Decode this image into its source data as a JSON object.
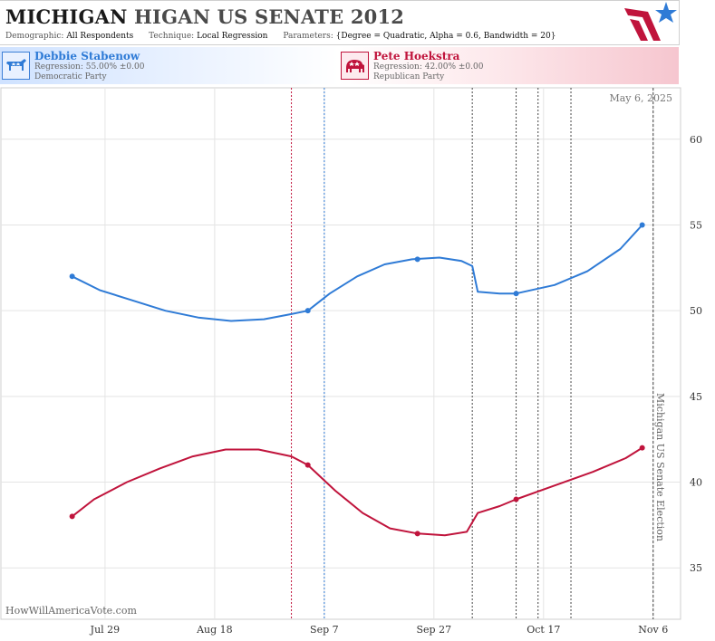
{
  "header": {
    "title_state": "MICHIGAN",
    "title_race": "HIGAN US SENATE 2012",
    "demographic_label": "Demographic:",
    "demographic_value": "All Respondents",
    "technique_label": "Technique:",
    "technique_value": "Local Regression",
    "parameters_label": "Parameters:",
    "parameters_value": "{Degree = Quadratic, Alpha = 0.6, Bandwidth = 20}"
  },
  "candidates": [
    {
      "name": "Debbie Stabenow",
      "regression": "Regression: 55.00% ±0.00",
      "party": "Democratic Party",
      "icon": "donkey-icon"
    },
    {
      "name": "Pete Hoekstra",
      "regression": "Regression: 42.00% ±0.00",
      "party": "Republican Party",
      "icon": "elephant-icon"
    }
  ],
  "colors": {
    "dem": "#2f7bd6",
    "rep": "#c0143c",
    "grid": "#e4e4e4",
    "event": "#444444"
  },
  "chart_data": {
    "type": "line",
    "date_label": "May 6, 2025",
    "watermark": "HowWillAmericaVote.com",
    "event_label": "Michigan US Senate Election",
    "x_ticks": [
      {
        "label": "Jul 29",
        "date": "2012-07-29"
      },
      {
        "label": "Aug 18",
        "date": "2012-08-18"
      },
      {
        "label": "Sep 7",
        "date": "2012-09-07"
      },
      {
        "label": "Sep 27",
        "date": "2012-09-27"
      },
      {
        "label": "Oct 17",
        "date": "2012-10-17"
      },
      {
        "label": "Nov 6",
        "date": "2012-11-06"
      }
    ],
    "xlim": [
      "2012-07-10",
      "2012-11-11"
    ],
    "ylim": [
      32,
      63
    ],
    "y_ticks": [
      35,
      40,
      45,
      50,
      55,
      60
    ],
    "series": [
      {
        "name": "Debbie Stabenow",
        "color": "#2f7bd6",
        "line": [
          [
            "2012-07-23",
            52.0
          ],
          [
            "2012-07-28",
            51.2
          ],
          [
            "2012-08-03",
            50.6
          ],
          [
            "2012-08-09",
            50.0
          ],
          [
            "2012-08-15",
            49.6
          ],
          [
            "2012-08-21",
            49.4
          ],
          [
            "2012-08-27",
            49.5
          ],
          [
            "2012-09-01",
            49.8
          ],
          [
            "2012-09-04",
            50.0
          ],
          [
            "2012-09-08",
            51.0
          ],
          [
            "2012-09-13",
            52.0
          ],
          [
            "2012-09-18",
            52.7
          ],
          [
            "2012-09-23",
            53.0
          ],
          [
            "2012-09-28",
            53.1
          ],
          [
            "2012-10-02",
            52.9
          ],
          [
            "2012-10-04",
            52.6
          ],
          [
            "2012-10-05",
            51.1
          ],
          [
            "2012-10-09",
            51.0
          ],
          [
            "2012-10-12",
            51.0
          ],
          [
            "2012-10-19",
            51.5
          ],
          [
            "2012-10-25",
            52.3
          ],
          [
            "2012-10-31",
            53.6
          ],
          [
            "2012-11-04",
            55.0
          ]
        ],
        "points": [
          [
            "2012-07-23",
            52
          ],
          [
            "2012-09-04",
            50
          ],
          [
            "2012-09-24",
            53
          ],
          [
            "2012-10-12",
            51
          ],
          [
            "2012-11-04",
            55
          ]
        ]
      },
      {
        "name": "Pete Hoekstra",
        "color": "#c0143c",
        "line": [
          [
            "2012-07-23",
            38.0
          ],
          [
            "2012-07-27",
            39.0
          ],
          [
            "2012-08-02",
            40.0
          ],
          [
            "2012-08-08",
            40.8
          ],
          [
            "2012-08-14",
            41.5
          ],
          [
            "2012-08-20",
            41.9
          ],
          [
            "2012-08-26",
            41.9
          ],
          [
            "2012-09-01",
            41.5
          ],
          [
            "2012-09-04",
            41.0
          ],
          [
            "2012-09-09",
            39.5
          ],
          [
            "2012-09-14",
            38.2
          ],
          [
            "2012-09-19",
            37.3
          ],
          [
            "2012-09-24",
            37.0
          ],
          [
            "2012-09-29",
            36.9
          ],
          [
            "2012-10-03",
            37.1
          ],
          [
            "2012-10-05",
            38.2
          ],
          [
            "2012-10-09",
            38.6
          ],
          [
            "2012-10-12",
            39.0
          ],
          [
            "2012-10-19",
            39.8
          ],
          [
            "2012-10-26",
            40.6
          ],
          [
            "2012-11-01",
            41.4
          ],
          [
            "2012-11-04",
            42.0
          ]
        ],
        "points": [
          [
            "2012-07-23",
            38
          ],
          [
            "2012-09-04",
            41
          ],
          [
            "2012-09-24",
            37
          ],
          [
            "2012-10-12",
            39
          ],
          [
            "2012-11-04",
            42
          ]
        ]
      }
    ],
    "event_lines": [
      {
        "date": "2012-09-01",
        "style": "rep"
      },
      {
        "date": "2012-09-07",
        "style": "dem"
      },
      {
        "date": "2012-10-04",
        "style": "neutral"
      },
      {
        "date": "2012-10-12",
        "style": "neutral"
      },
      {
        "date": "2012-10-16",
        "style": "neutral"
      },
      {
        "date": "2012-10-22",
        "style": "neutral"
      },
      {
        "date": "2012-11-06",
        "style": "election"
      }
    ]
  }
}
